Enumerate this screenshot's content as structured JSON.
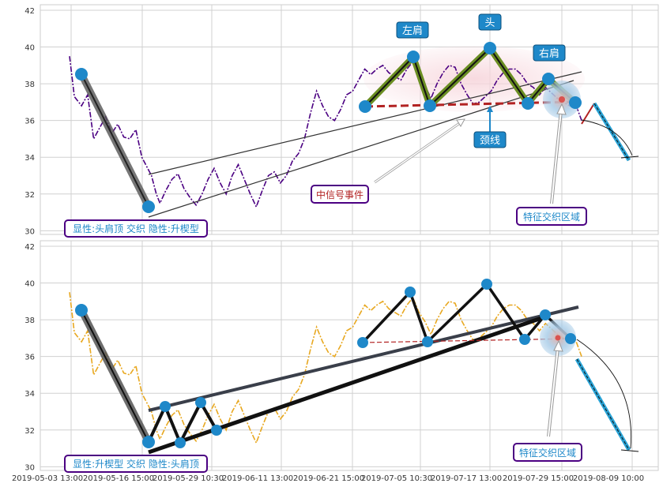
{
  "chart_data": [
    {
      "type": "line",
      "panel": "top",
      "ylim": [
        29.8,
        42.3
      ],
      "yticks": [
        30,
        32,
        34,
        36,
        38,
        40,
        42
      ],
      "grid": true,
      "series": [
        {
          "line_style": "dash-dot",
          "color": "#4b0082",
          "points": [
            [
              0.0,
              39.5
            ],
            [
              0.4,
              37.3
            ],
            [
              1.0,
              36.8
            ],
            [
              1.5,
              37.4
            ],
            [
              2.0,
              35.0
            ],
            [
              2.5,
              35.6
            ],
            [
              3.0,
              36.2
            ],
            [
              3.5,
              35.3
            ],
            [
              4.0,
              35.8
            ],
            [
              4.5,
              35.1
            ],
            [
              5.0,
              35.0
            ],
            [
              5.5,
              35.5
            ],
            [
              6.0,
              34.0
            ],
            [
              6.8,
              33.0
            ],
            [
              7.2,
              32.0
            ],
            [
              7.5,
              31.5
            ],
            [
              8.0,
              32.2
            ],
            [
              8.5,
              32.8
            ],
            [
              9.0,
              33.1
            ],
            [
              9.5,
              32.3
            ],
            [
              10.0,
              31.8
            ],
            [
              10.5,
              31.4
            ],
            [
              11.0,
              32.0
            ],
            [
              11.5,
              32.8
            ],
            [
              12.0,
              33.4
            ],
            [
              12.5,
              32.6
            ],
            [
              13.0,
              32.0
            ],
            [
              13.5,
              33.0
            ],
            [
              14.0,
              33.6
            ],
            [
              14.5,
              32.8
            ],
            [
              15.0,
              32.0
            ],
            [
              15.5,
              31.3
            ],
            [
              16.0,
              32.2
            ],
            [
              16.5,
              33.0
            ],
            [
              17.0,
              33.2
            ],
            [
              17.5,
              32.6
            ],
            [
              18.0,
              33.0
            ],
            [
              18.5,
              33.8
            ],
            [
              19.0,
              34.2
            ],
            [
              19.5,
              35.0
            ],
            [
              20.0,
              36.4
            ],
            [
              20.5,
              37.6
            ],
            [
              21.0,
              36.8
            ],
            [
              21.5,
              36.2
            ],
            [
              22.0,
              36.0
            ],
            [
              22.5,
              36.6
            ],
            [
              23.0,
              37.4
            ],
            [
              23.5,
              37.6
            ],
            [
              24.0,
              38.2
            ],
            [
              24.5,
              38.8
            ],
            [
              25.0,
              38.5
            ],
            [
              25.5,
              38.8
            ],
            [
              26.0,
              39.0
            ],
            [
              26.5,
              38.6
            ],
            [
              27.0,
              38.4
            ],
            [
              27.5,
              38.2
            ],
            [
              28.0,
              38.8
            ],
            [
              28.5,
              39.2
            ],
            [
              29.0,
              38.4
            ],
            [
              29.5,
              37.9
            ],
            [
              30.0,
              37.2
            ],
            [
              30.5,
              38.0
            ],
            [
              31.0,
              38.6
            ],
            [
              31.5,
              39.0
            ],
            [
              32.0,
              38.9
            ],
            [
              32.5,
              38.0
            ],
            [
              33.0,
              37.4
            ],
            [
              33.5,
              36.9
            ],
            [
              34.0,
              37.0
            ],
            [
              34.5,
              37.3
            ],
            [
              35.0,
              37.6
            ],
            [
              35.5,
              38.2
            ],
            [
              36.0,
              38.6
            ],
            [
              36.5,
              38.8
            ],
            [
              37.0,
              38.8
            ],
            [
              37.5,
              38.5
            ],
            [
              38.0,
              38.0
            ],
            [
              38.5,
              37.8
            ],
            [
              39.0,
              37.4
            ],
            [
              39.5,
              37.8
            ],
            [
              40.0,
              37.5
            ],
            [
              40.5,
              37.2
            ],
            [
              41.0,
              37.0
            ],
            [
              41.5,
              36.8
            ],
            [
              42.0,
              36.9
            ],
            [
              42.5,
              36.0
            ]
          ]
        }
      ],
      "annotations": [
        "左肩",
        "头",
        "右肩",
        "颈线",
        "中信号事件",
        "特征交织区域",
        "显性:头肩顶 交织 隐性:升楔型"
      ]
    },
    {
      "type": "line",
      "panel": "bottom",
      "ylim": [
        29.8,
        42.3
      ],
      "yticks": [
        30,
        32,
        34,
        36,
        38,
        40,
        42
      ],
      "grid": true,
      "series": [
        {
          "line_style": "dash-dot",
          "color": "#e8a820",
          "points": [
            [
              0.0,
              39.5
            ],
            [
              0.4,
              37.3
            ],
            [
              1.0,
              36.8
            ],
            [
              1.5,
              37.4
            ],
            [
              2.0,
              35.0
            ],
            [
              2.5,
              35.6
            ],
            [
              3.0,
              36.2
            ],
            [
              3.5,
              35.3
            ],
            [
              4.0,
              35.8
            ],
            [
              4.5,
              35.1
            ],
            [
              5.0,
              35.0
            ],
            [
              5.5,
              35.5
            ],
            [
              6.0,
              34.0
            ],
            [
              6.8,
              33.0
            ],
            [
              7.2,
              32.0
            ],
            [
              7.5,
              31.5
            ],
            [
              8.0,
              32.2
            ],
            [
              8.5,
              32.8
            ],
            [
              9.0,
              33.1
            ],
            [
              9.5,
              32.3
            ],
            [
              10.0,
              31.8
            ],
            [
              10.5,
              31.4
            ],
            [
              11.0,
              32.0
            ],
            [
              11.5,
              32.8
            ],
            [
              12.0,
              33.4
            ],
            [
              12.5,
              32.6
            ],
            [
              13.0,
              32.0
            ],
            [
              13.5,
              33.0
            ],
            [
              14.0,
              33.6
            ],
            [
              14.5,
              32.8
            ],
            [
              15.0,
              32.0
            ],
            [
              15.5,
              31.3
            ],
            [
              16.0,
              32.2
            ],
            [
              16.5,
              33.0
            ],
            [
              17.0,
              33.2
            ],
            [
              17.5,
              32.6
            ],
            [
              18.0,
              33.0
            ],
            [
              18.5,
              33.8
            ],
            [
              19.0,
              34.2
            ],
            [
              19.5,
              35.0
            ],
            [
              20.0,
              36.4
            ],
            [
              20.5,
              37.6
            ],
            [
              21.0,
              36.8
            ],
            [
              21.5,
              36.2
            ],
            [
              22.0,
              36.0
            ],
            [
              22.5,
              36.6
            ],
            [
              23.0,
              37.4
            ],
            [
              23.5,
              37.6
            ],
            [
              24.0,
              38.2
            ],
            [
              24.5,
              38.8
            ],
            [
              25.0,
              38.5
            ],
            [
              25.5,
              38.8
            ],
            [
              26.0,
              39.0
            ],
            [
              26.5,
              38.6
            ],
            [
              27.0,
              38.4
            ],
            [
              27.5,
              38.2
            ],
            [
              28.0,
              38.8
            ],
            [
              28.5,
              39.2
            ],
            [
              29.0,
              38.4
            ],
            [
              29.5,
              37.9
            ],
            [
              30.0,
              37.2
            ],
            [
              30.5,
              38.0
            ],
            [
              31.0,
              38.6
            ],
            [
              31.5,
              39.0
            ],
            [
              32.0,
              38.9
            ],
            [
              32.5,
              38.0
            ],
            [
              33.0,
              37.4
            ],
            [
              33.5,
              36.9
            ],
            [
              34.0,
              37.0
            ],
            [
              34.5,
              37.3
            ],
            [
              35.0,
              37.6
            ],
            [
              35.5,
              38.2
            ],
            [
              36.0,
              38.6
            ],
            [
              36.5,
              38.8
            ],
            [
              37.0,
              38.8
            ],
            [
              37.5,
              38.5
            ],
            [
              38.0,
              38.0
            ],
            [
              38.5,
              37.8
            ],
            [
              39.0,
              37.4
            ],
            [
              39.5,
              37.8
            ],
            [
              40.0,
              37.5
            ],
            [
              40.5,
              37.2
            ],
            [
              41.0,
              37.0
            ],
            [
              41.5,
              36.8
            ],
            [
              42.0,
              36.9
            ],
            [
              42.5,
              36.0
            ]
          ]
        }
      ],
      "annotations": [
        "特征交织区域",
        "显性:升楔型 交织 隐性:头肩顶"
      ]
    }
  ],
  "xticks": [
    "2019-05-03 13:00",
    "2019-05-16 15:00",
    "2019-05-29 10:30",
    "2019-06-11 13:00",
    "2019-06-21 15:00",
    "2019-07-05 10:30",
    "2019-07-17 13:00",
    "2019-07-29 15:00",
    "2019-08-09 10:00"
  ],
  "labels": {
    "left_shoulder": "左肩",
    "head": "头",
    "right_shoulder": "右肩",
    "neckline": "颈线",
    "mid_signal": "中信号事件",
    "zone_top": "特征交织区域",
    "zone_bottom": "特征交织区域",
    "caption_top": "显性:头肩顶 交织 隐性:升楔型",
    "caption_bottom": "显性:升楔型 交织 隐性:头肩顶"
  },
  "colors": {
    "price_top": "#4b0082",
    "price_bottom": "#e8a820",
    "marker": "#1e88c9",
    "neckline": "#b22222",
    "pattern_top": "#6b8e23",
    "forecast": "#29a3d6",
    "label_box": "#1e88c9",
    "callout_border": "#4b0082",
    "callout_text_red": "#b22222",
    "callout_text_blue": "#1e88c9"
  }
}
